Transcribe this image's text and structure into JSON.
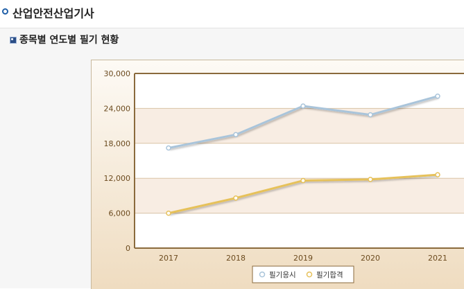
{
  "header": {
    "title": "산업안전산업기사"
  },
  "section": {
    "title": "종목별 연도별 필기 현황"
  },
  "chart_data": {
    "type": "line",
    "title": "",
    "xlabel": "",
    "ylabel": "",
    "categories": [
      "2017",
      "2018",
      "2019",
      "2020",
      "2021"
    ],
    "y_ticks": [
      "0",
      "6,000",
      "12,000",
      "18,000",
      "24,000",
      "30,000"
    ],
    "ylim": [
      0,
      30000
    ],
    "grid": true,
    "legend_position": "bottom",
    "series": [
      {
        "name": "필기응시",
        "values": [
          17200,
          19500,
          24400,
          22900,
          26100
        ],
        "color": "#a9c4da"
      },
      {
        "name": "필기합격",
        "values": [
          6000,
          8600,
          11600,
          11800,
          12600
        ],
        "color": "#e6c15a"
      }
    ]
  }
}
